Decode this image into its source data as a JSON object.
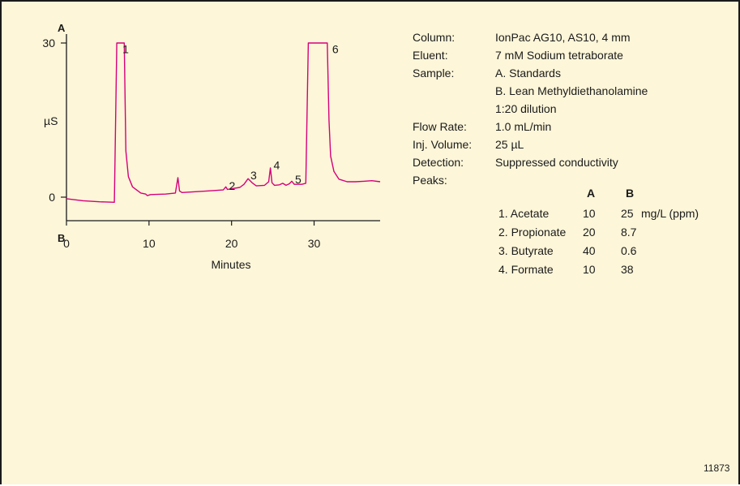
{
  "chart_data": {
    "type": "line",
    "xlabel": "Minutes",
    "ylabel": "µS",
    "xlim": [
      0,
      38
    ],
    "ylim": [
      0,
      30
    ],
    "x_ticks": [
      "0",
      "10",
      "20",
      "30"
    ],
    "y_ticks": [
      "0",
      "30"
    ],
    "trace_labels": [
      "A",
      "B"
    ],
    "series": [
      {
        "color": "#d6007a",
        "x": [
          0,
          2,
          4,
          5.8,
          6.1,
          6.3,
          6.5,
          6.8,
          7.0,
          7.2,
          7.5,
          8.0,
          9.0,
          9.6,
          9.8,
          10.2,
          12.0,
          13.2,
          13.5,
          13.7,
          14.0,
          15.0,
          17.0,
          19.0,
          19.3,
          19.5,
          19.8,
          21.0,
          21.5,
          22.0,
          22.5,
          23.0,
          24.0,
          24.5,
          24.7,
          24.9,
          25.2,
          25.8,
          26.2,
          26.6,
          27.0,
          27.3,
          27.6,
          28.5,
          29.0,
          29.3,
          29.6,
          30.0,
          31.0,
          31.6,
          31.8,
          32.0,
          32.4,
          33.0,
          34.0,
          35.0,
          36.0,
          37.0,
          38.0
        ],
        "y": [
          -0.3,
          -0.7,
          -0.9,
          -1.0,
          30,
          30,
          30,
          30,
          30,
          9,
          4,
          2,
          0.8,
          0.6,
          0.3,
          0.5,
          0.6,
          0.8,
          3.8,
          1.2,
          0.9,
          1.0,
          1.2,
          1.4,
          2.0,
          1.5,
          1.6,
          1.9,
          2.5,
          3.6,
          2.8,
          2.2,
          2.3,
          3.0,
          5.7,
          2.8,
          2.3,
          2.4,
          2.7,
          2.3,
          2.6,
          3.1,
          2.5,
          2.5,
          2.7,
          30,
          30,
          30,
          30,
          30,
          15,
          8,
          5,
          3.5,
          3.0,
          3.0,
          3.1,
          3.2,
          3.0
        ]
      }
    ],
    "peak_labels": [
      {
        "label": "1",
        "x": 6.4,
        "y": 29
      },
      {
        "label": "2",
        "x": 19.3,
        "y": 2.4
      },
      {
        "label": "3",
        "x": 21.9,
        "y": 4.4
      },
      {
        "label": "4",
        "x": 24.7,
        "y": 6.4
      },
      {
        "label": "5",
        "x": 27.3,
        "y": 3.6
      },
      {
        "label": "6",
        "x": 31.8,
        "y": 29
      }
    ]
  },
  "conditions": [
    {
      "label": "Column:",
      "value": "IonPac AG10, AS10, 4 mm"
    },
    {
      "label": "Eluent:",
      "value": "7 mM Sodium tetraborate"
    },
    {
      "label": "Sample:",
      "value": "A. Standards"
    },
    {
      "label": "",
      "value": "B. Lean Methyldiethanolamine"
    },
    {
      "label": "",
      "value": "1:20 dilution"
    },
    {
      "label": "Flow Rate:",
      "value": "1.0 mL/min"
    },
    {
      "label": "Inj. Volume:",
      "value": "25 µL"
    },
    {
      "label": "Detection:",
      "value": "Suppressed conductivity"
    },
    {
      "label": "Peaks:",
      "value": ""
    }
  ],
  "peaks_table": {
    "col_a": "A",
    "col_b": "B",
    "unit": "mg/L (ppm)",
    "rows": [
      {
        "name": "1. Acetate",
        "a": "10",
        "b": "25"
      },
      {
        "name": "2. Propionate",
        "a": "20",
        "b": "8.7"
      },
      {
        "name": "3. Butyrate",
        "a": "40",
        "b": "0.6"
      },
      {
        "name": "4. Formate",
        "a": "10",
        "b": "38"
      }
    ]
  },
  "figure_id": "11873",
  "colors": {
    "background": "#fdf6d9",
    "trace": "#d6007a",
    "text": "#1a1a1a"
  }
}
